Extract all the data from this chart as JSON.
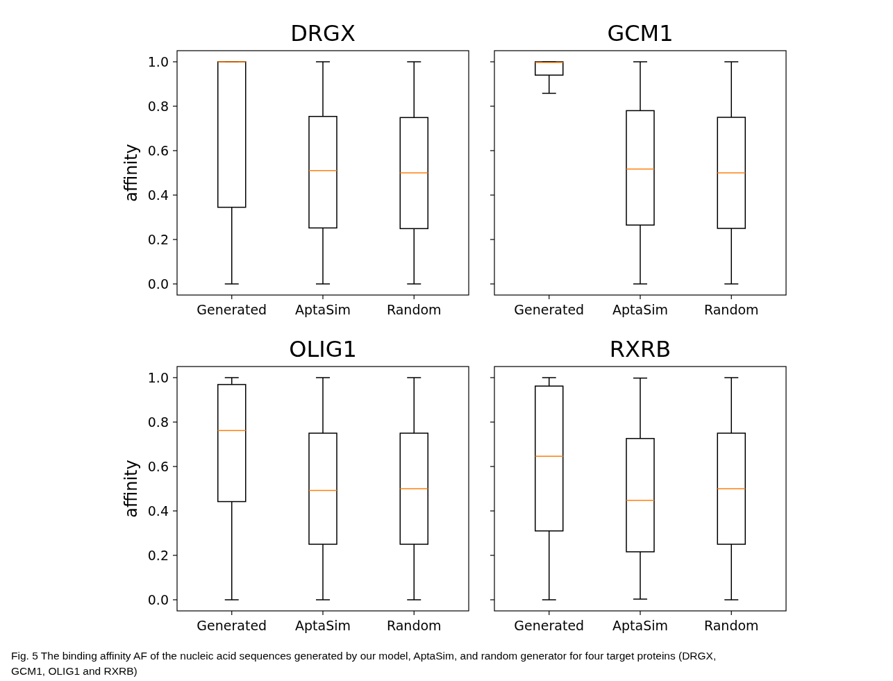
{
  "chart_data": [
    {
      "type": "box",
      "title": "DRGX",
      "ylabel": "affinity",
      "categories": [
        "Generated",
        "AptaSim",
        "Random"
      ],
      "ylim": [
        -0.05,
        1.05
      ],
      "yticks": [
        {
          "value": 0,
          "label": "0.0"
        },
        0.2,
        0.4,
        0.6,
        0.8,
        {
          "value": 1,
          "label": "1.0"
        }
      ],
      "color": "#000000",
      "grid": false,
      "boxes": [
        {
          "low": 0,
          "q1": 0.345,
          "median": 1.0,
          "q3": 1.0,
          "high": 1.0
        },
        {
          "low": 0,
          "q1": 0.252,
          "median": 0.51,
          "q3": 0.754,
          "high": 1.0
        },
        {
          "low": 0,
          "q1": 0.249,
          "median": 0.5,
          "q3": 0.749,
          "high": 1.0
        }
      ],
      "annotations": [
        "Fig. 5 The binding affinity AF of the nucleic acid sequences generated by our model, AptaSim, and random generator for four target proteins (DRGX, GCM1, OLIG1 and RXRB)"
      ]
    },
    {
      "type": "box",
      "title": "GCM1",
      "categories": [
        "Generated",
        "AptaSim",
        "Random"
      ],
      "ylim": [
        -0.05,
        1.05
      ],
      "yticks": [
        {
          "value": 0,
          "label": null
        },
        {
          "value": 0.2,
          "label": null
        },
        {
          "value": 0.4,
          "label": null
        },
        {
          "value": 0.6,
          "label": null
        },
        {
          "value": 0.8,
          "label": null
        },
        {
          "value": 1,
          "label": null
        }
      ],
      "tick_labels": "x",
      "color": "#000000",
      "grid": false,
      "boxes": [
        {
          "low": 0.858,
          "q1": 0.94,
          "median": 0.997,
          "q3": 1.0,
          "high": 1.0
        },
        {
          "low": 0,
          "q1": 0.265,
          "median": 0.517,
          "q3": 0.78,
          "high": 1.0
        },
        {
          "low": 0,
          "q1": 0.25,
          "median": 0.5,
          "q3": 0.75,
          "high": 1.0
        }
      ]
    },
    {
      "type": "box",
      "title": "OLIG1",
      "ylabel": "affinity",
      "categories": [
        "Generated",
        "AptaSim",
        "Random"
      ],
      "ylim": [
        -0.05,
        1.05
      ],
      "yticks": [
        {
          "value": 0,
          "label": "0.0"
        },
        0.2,
        0.4,
        0.6,
        0.8,
        {
          "value": 1,
          "label": "1.0"
        }
      ],
      "color": "#000000",
      "grid": false,
      "boxes": [
        {
          "low": 0,
          "q1": 0.442,
          "median": 0.762,
          "q3": 0.969,
          "high": 1.0
        },
        {
          "low": 0,
          "q1": 0.25,
          "median": 0.492,
          "q3": 0.75,
          "high": 1.0
        },
        {
          "low": 0,
          "q1": 0.25,
          "median": 0.5,
          "q3": 0.75,
          "high": 1.0
        }
      ]
    },
    {
      "type": "box",
      "title": "RXRB",
      "categories": [
        "Generated",
        "AptaSim",
        "Random"
      ],
      "ylim": [
        -0.05,
        1.05
      ],
      "yticks": [
        {
          "value": 0,
          "label": null
        },
        {
          "value": 0.2,
          "label": null
        },
        {
          "value": 0.4,
          "label": null
        },
        {
          "value": 0.6,
          "label": null
        },
        {
          "value": 0.8,
          "label": null
        },
        {
          "value": 1,
          "label": null
        }
      ],
      "tick_labels": "x",
      "color": "#000000",
      "grid": false,
      "boxes": [
        {
          "low": 0,
          "q1": 0.31,
          "median": 0.646,
          "q3": 0.962,
          "high": 1.0
        },
        {
          "low": 0.003,
          "q1": 0.216,
          "median": 0.448,
          "q3": 0.726,
          "high": 0.998
        },
        {
          "low": 0,
          "q1": 0.25,
          "median": 0.5,
          "q3": 0.75,
          "high": 1.0
        }
      ]
    }
  ]
}
